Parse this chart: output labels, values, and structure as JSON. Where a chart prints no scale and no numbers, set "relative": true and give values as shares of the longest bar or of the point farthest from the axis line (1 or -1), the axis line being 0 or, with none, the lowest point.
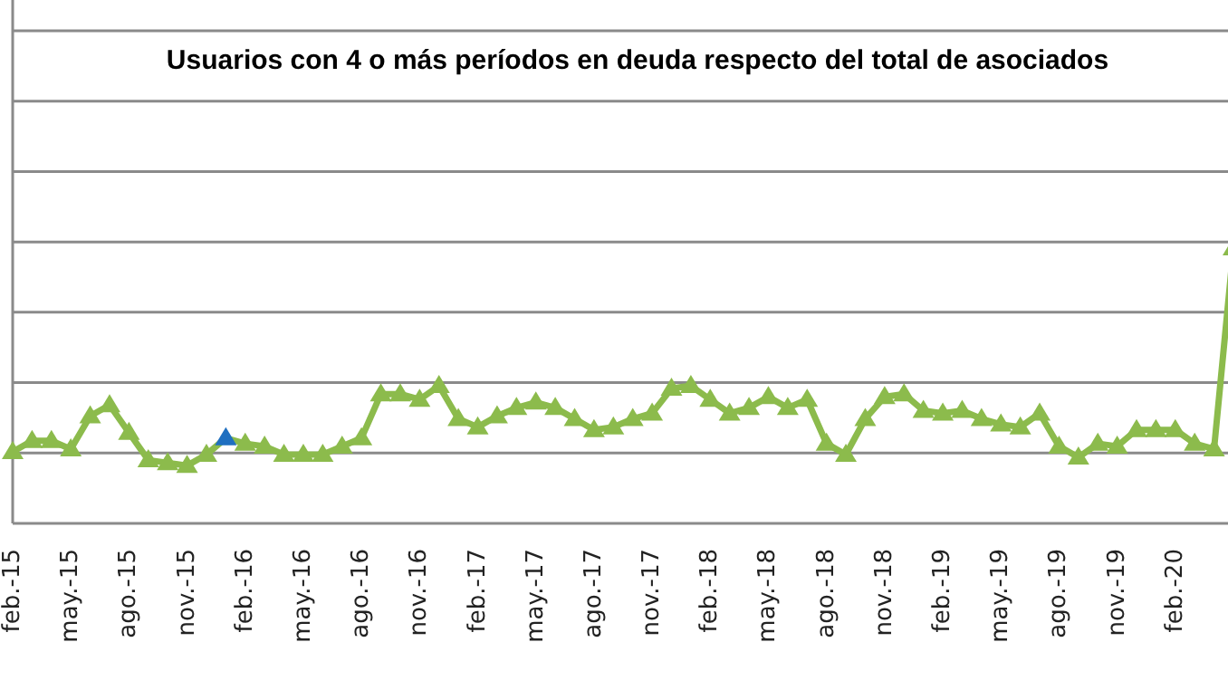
{
  "chart_data": {
    "type": "line",
    "title": "Usuarios con 4 o más períodos en deuda respecto del total de asociados",
    "relative": true,
    "grid": "y",
    "legend": false,
    "marker": "triangle",
    "line_style": "solid",
    "categories": [
      "feb.-15",
      null,
      null,
      "may.-15",
      null,
      null,
      "ago.-15",
      null,
      null,
      "nov.-15",
      null,
      null,
      "feb.-16",
      null,
      null,
      "may.-16",
      null,
      null,
      "ago.-16",
      null,
      null,
      "nov.-16",
      null,
      null,
      "feb.-17",
      null,
      null,
      "may.-17",
      null,
      null,
      "ago.-17",
      null,
      null,
      "nov.-17",
      null,
      null,
      "feb.-18",
      null,
      null,
      "may.-18",
      null,
      null,
      "ago.-18",
      null,
      null,
      "nov.-18",
      null,
      null,
      "feb.-19",
      null,
      null,
      "may.-19",
      null,
      null,
      "ago.-19",
      null,
      null,
      "nov.-19",
      null,
      null,
      "feb.-20",
      null,
      null,
      null
    ],
    "series": [
      {
        "color": "#8cbb4c",
        "colors": [
          "#8cbb4c",
          "#8cbb4c",
          "#8cbb4c",
          "#8cbb4c",
          "#8cbb4c",
          "#8cbb4c",
          "#8cbb4c",
          "#8cbb4c",
          "#8cbb4c",
          "#8cbb4c",
          "#8cbb4c",
          "#1f6fc0",
          "#8cbb4c",
          "#8cbb4c",
          "#8cbb4c",
          "#8cbb4c",
          "#8cbb4c",
          "#8cbb4c",
          "#8cbb4c",
          "#8cbb4c",
          "#8cbb4c",
          "#8cbb4c",
          "#8cbb4c",
          "#8cbb4c",
          "#8cbb4c",
          "#8cbb4c",
          "#8cbb4c",
          "#8cbb4c",
          "#8cbb4c",
          "#8cbb4c",
          "#8cbb4c",
          "#8cbb4c",
          "#8cbb4c",
          "#8cbb4c",
          "#8cbb4c",
          "#8cbb4c",
          "#8cbb4c",
          "#8cbb4c",
          "#8cbb4c",
          "#8cbb4c",
          "#8cbb4c",
          "#8cbb4c",
          "#8cbb4c",
          "#8cbb4c",
          "#8cbb4c",
          "#8cbb4c",
          "#8cbb4c",
          "#8cbb4c",
          "#8cbb4c",
          "#8cbb4c",
          "#8cbb4c",
          "#8cbb4c",
          "#8cbb4c",
          "#8cbb4c",
          "#8cbb4c",
          "#8cbb4c",
          "#8cbb4c",
          "#8cbb4c",
          "#8cbb4c",
          "#8cbb4c",
          "#8cbb4c",
          "#8cbb4c",
          "#8cbb4c",
          "#8cbb4c"
        ],
        "values": [
          0.26,
          0.3,
          0.3,
          0.27,
          0.39,
          0.43,
          0.33,
          0.23,
          0.22,
          0.21,
          0.25,
          0.31,
          0.29,
          0.28,
          0.25,
          0.25,
          0.25,
          0.28,
          0.31,
          0.47,
          0.47,
          0.45,
          0.5,
          0.38,
          0.35,
          0.39,
          0.42,
          0.44,
          0.42,
          0.38,
          0.34,
          0.35,
          0.38,
          0.4,
          0.49,
          0.5,
          0.45,
          0.4,
          0.42,
          0.46,
          0.42,
          0.45,
          0.29,
          0.25,
          0.38,
          0.46,
          0.47,
          0.41,
          0.4,
          0.41,
          0.38,
          0.36,
          0.35,
          0.4,
          0.28,
          0.24,
          0.29,
          0.28,
          0.34,
          0.34,
          0.34,
          0.29,
          0.27,
          1
        ]
      }
    ]
  }
}
